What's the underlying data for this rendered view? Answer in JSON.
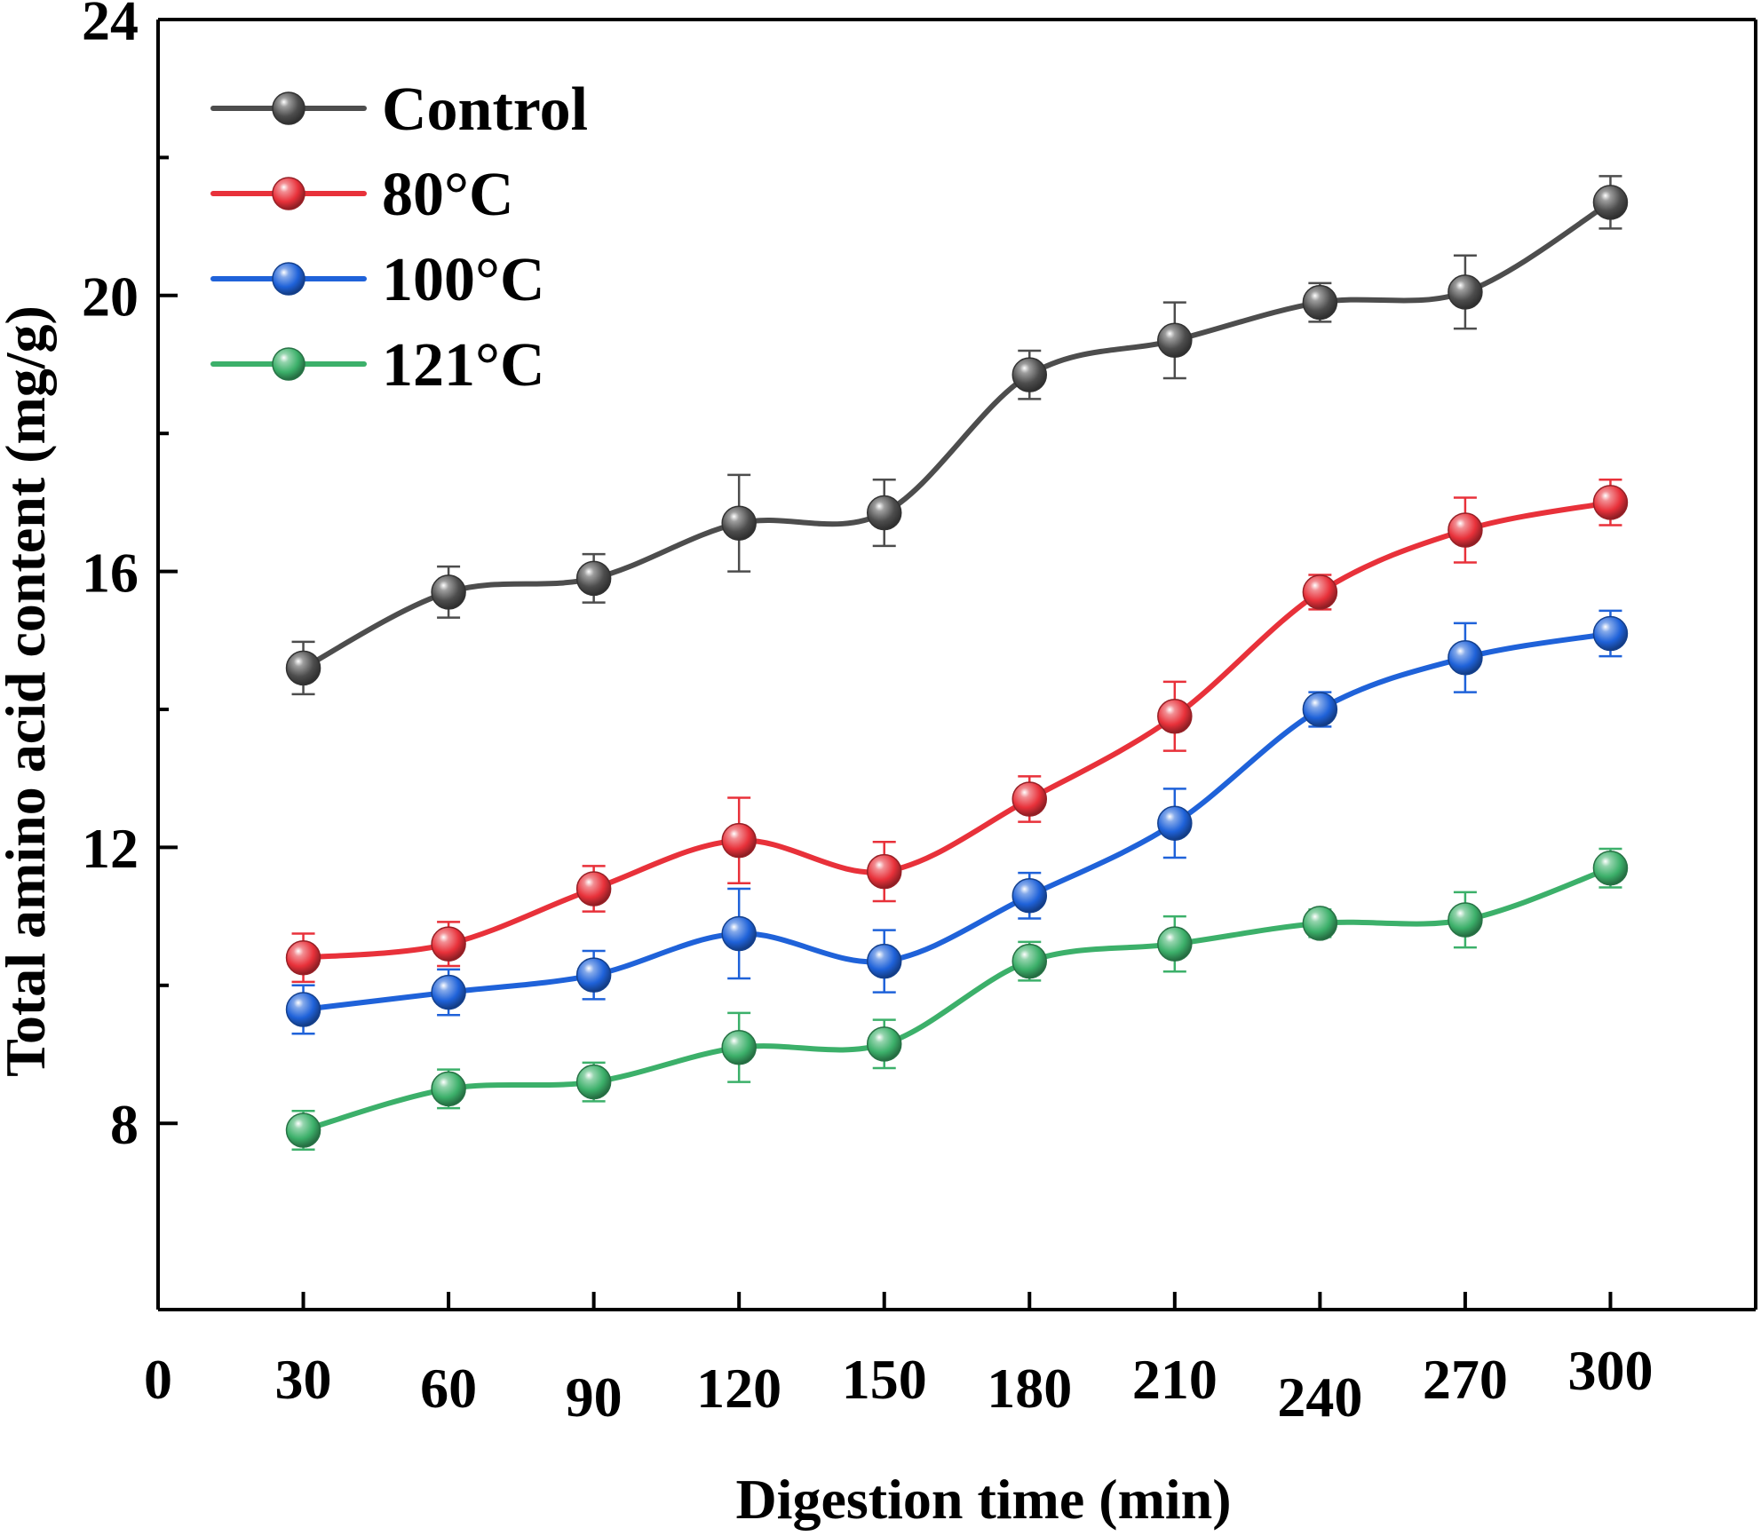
{
  "chart_data": {
    "type": "line",
    "xlabel": "Digestion time (min)",
    "ylabel": "Total amino acid content (mg/g)",
    "x": [
      30,
      60,
      90,
      120,
      150,
      180,
      210,
      240,
      270,
      300
    ],
    "xlim": [
      0,
      330
    ],
    "ylim": [
      5.3,
      24
    ],
    "x_tick_labels": [
      "0",
      "30",
      "60",
      "90",
      "120",
      "150",
      "180",
      "210",
      "240",
      "270",
      "300"
    ],
    "y_ticks": [
      8,
      12,
      16,
      20,
      24
    ],
    "legend_position": "top-left",
    "series": [
      {
        "name": "Control",
        "color": "#4d4d4d",
        "values": [
          14.6,
          15.7,
          15.9,
          16.7,
          16.85,
          18.85,
          19.35,
          19.9,
          20.05,
          21.35
        ],
        "errors": [
          0.38,
          0.37,
          0.35,
          0.7,
          0.48,
          0.35,
          0.55,
          0.28,
          0.53,
          0.38
        ]
      },
      {
        "name": "80°C",
        "color": "#e8313a",
        "values": [
          10.4,
          10.6,
          11.4,
          12.1,
          11.65,
          12.7,
          13.9,
          15.7,
          16.6,
          17.0
        ],
        "errors": [
          0.35,
          0.32,
          0.33,
          0.62,
          0.43,
          0.33,
          0.5,
          0.25,
          0.47,
          0.33
        ]
      },
      {
        "name": "100°C",
        "color": "#1f62d9",
        "values": [
          9.65,
          9.9,
          10.15,
          10.75,
          10.35,
          11.3,
          12.35,
          14.0,
          14.75,
          15.1
        ],
        "errors": [
          0.35,
          0.33,
          0.35,
          0.65,
          0.45,
          0.33,
          0.5,
          0.25,
          0.5,
          0.33
        ]
      },
      {
        "name": "121°C",
        "color": "#3cb06a",
        "values": [
          7.9,
          8.5,
          8.6,
          9.1,
          9.15,
          10.35,
          10.6,
          10.9,
          10.95,
          11.7
        ],
        "errors": [
          0.28,
          0.28,
          0.28,
          0.5,
          0.35,
          0.28,
          0.4,
          0.2,
          0.4,
          0.28
        ]
      }
    ]
  }
}
